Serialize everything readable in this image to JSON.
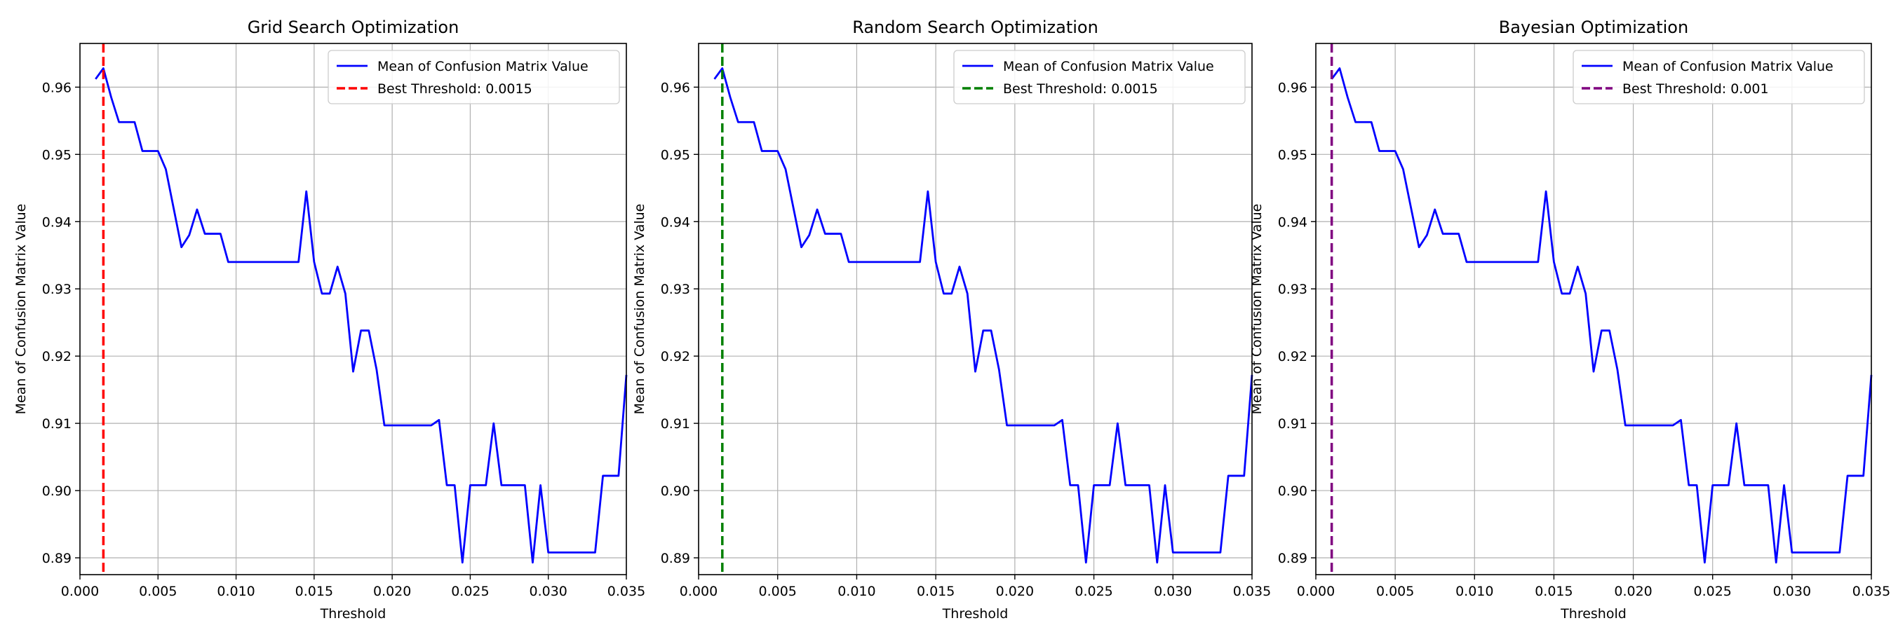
{
  "chart_data": [
    {
      "type": "line",
      "title": "Grid Search Optimization",
      "xlabel": "Threshold",
      "ylabel": "Mean of Confusion Matrix Value",
      "xlim": [
        0.0,
        0.035
      ],
      "ylim": [
        0.8875,
        0.9665
      ],
      "xticks": [
        "0.000",
        "0.005",
        "0.010",
        "0.015",
        "0.020",
        "0.025",
        "0.030",
        "0.035"
      ],
      "yticks": [
        "0.89",
        "0.90",
        "0.91",
        "0.92",
        "0.93",
        "0.94",
        "0.95",
        "0.96"
      ],
      "grid": true,
      "legend_position": "top-right",
      "series": [
        {
          "name": "Mean of Confusion Matrix Value",
          "color": "#0000ff",
          "x": [
            0.001,
            0.0015,
            0.002,
            0.0025,
            0.003,
            0.0035,
            0.004,
            0.0045,
            0.005,
            0.0055,
            0.006,
            0.0065,
            0.007,
            0.0075,
            0.008,
            0.0085,
            0.009,
            0.0095,
            0.01,
            0.0105,
            0.011,
            0.0115,
            0.012,
            0.0125,
            0.013,
            0.0135,
            0.014,
            0.0145,
            0.015,
            0.0155,
            0.016,
            0.0165,
            0.017,
            0.0175,
            0.018,
            0.0185,
            0.019,
            0.0195,
            0.02,
            0.0205,
            0.021,
            0.0215,
            0.022,
            0.0225,
            0.023,
            0.0235,
            0.024,
            0.0245,
            0.025,
            0.0255,
            0.026,
            0.0265,
            0.027,
            0.0275,
            0.028,
            0.0285,
            0.029,
            0.0295,
            0.03,
            0.0305,
            0.031,
            0.0315,
            0.032,
            0.0325,
            0.033,
            0.0335,
            0.034,
            0.0345,
            0.035
          ],
          "values": [
            0.9612,
            0.9628,
            0.9585,
            0.9548,
            0.9548,
            0.9548,
            0.9505,
            0.9505,
            0.9505,
            0.9478,
            0.942,
            0.9362,
            0.938,
            0.9418,
            0.9382,
            0.9382,
            0.9382,
            0.934,
            0.934,
            0.934,
            0.934,
            0.934,
            0.934,
            0.934,
            0.934,
            0.934,
            0.934,
            0.9445,
            0.934,
            0.9293,
            0.9293,
            0.9333,
            0.9293,
            0.9177,
            0.9238,
            0.9238,
            0.918,
            0.9097,
            0.9097,
            0.9097,
            0.9097,
            0.9097,
            0.9097,
            0.9097,
            0.9105,
            0.9008,
            0.9008,
            0.8893,
            0.9008,
            0.9008,
            0.9008,
            0.91,
            0.9008,
            0.9008,
            0.9008,
            0.9008,
            0.8893,
            0.9008,
            0.8908,
            0.8908,
            0.8908,
            0.8908,
            0.8908,
            0.8908,
            0.8908,
            0.9022,
            0.9022,
            0.9022,
            0.9172
          ]
        },
        {
          "name": "Best Threshold: 0.0015",
          "color": "#ff0000",
          "style": "dashed",
          "vline": 0.0015
        }
      ]
    },
    {
      "type": "line",
      "title": "Random Search Optimization",
      "xlabel": "Threshold",
      "ylabel": "Mean of Confusion Matrix Value",
      "xlim": [
        0.0,
        0.035
      ],
      "ylim": [
        0.8875,
        0.9665
      ],
      "xticks": [
        "0.000",
        "0.005",
        "0.010",
        "0.015",
        "0.020",
        "0.025",
        "0.030",
        "0.035"
      ],
      "yticks": [
        "0.89",
        "0.90",
        "0.91",
        "0.92",
        "0.93",
        "0.94",
        "0.95",
        "0.96"
      ],
      "grid": true,
      "legend_position": "top-right",
      "series": [
        {
          "name": "Mean of Confusion Matrix Value",
          "color": "#0000ff",
          "x": [
            0.001,
            0.0015,
            0.002,
            0.0025,
            0.003,
            0.0035,
            0.004,
            0.0045,
            0.005,
            0.0055,
            0.006,
            0.0065,
            0.007,
            0.0075,
            0.008,
            0.0085,
            0.009,
            0.0095,
            0.01,
            0.0105,
            0.011,
            0.0115,
            0.012,
            0.0125,
            0.013,
            0.0135,
            0.014,
            0.0145,
            0.015,
            0.0155,
            0.016,
            0.0165,
            0.017,
            0.0175,
            0.018,
            0.0185,
            0.019,
            0.0195,
            0.02,
            0.0205,
            0.021,
            0.0215,
            0.022,
            0.0225,
            0.023,
            0.0235,
            0.024,
            0.0245,
            0.025,
            0.0255,
            0.026,
            0.0265,
            0.027,
            0.0275,
            0.028,
            0.0285,
            0.029,
            0.0295,
            0.03,
            0.0305,
            0.031,
            0.0315,
            0.032,
            0.0325,
            0.033,
            0.0335,
            0.034,
            0.0345,
            0.035
          ],
          "values": [
            0.9612,
            0.9628,
            0.9585,
            0.9548,
            0.9548,
            0.9548,
            0.9505,
            0.9505,
            0.9505,
            0.9478,
            0.942,
            0.9362,
            0.938,
            0.9418,
            0.9382,
            0.9382,
            0.9382,
            0.934,
            0.934,
            0.934,
            0.934,
            0.934,
            0.934,
            0.934,
            0.934,
            0.934,
            0.934,
            0.9445,
            0.934,
            0.9293,
            0.9293,
            0.9333,
            0.9293,
            0.9177,
            0.9238,
            0.9238,
            0.918,
            0.9097,
            0.9097,
            0.9097,
            0.9097,
            0.9097,
            0.9097,
            0.9097,
            0.9105,
            0.9008,
            0.9008,
            0.8893,
            0.9008,
            0.9008,
            0.9008,
            0.91,
            0.9008,
            0.9008,
            0.9008,
            0.9008,
            0.8893,
            0.9008,
            0.8908,
            0.8908,
            0.8908,
            0.8908,
            0.8908,
            0.8908,
            0.8908,
            0.9022,
            0.9022,
            0.9022,
            0.9172
          ]
        },
        {
          "name": "Best Threshold: 0.0015",
          "color": "#008000",
          "style": "dashed",
          "vline": 0.0015
        }
      ]
    },
    {
      "type": "line",
      "title": "Bayesian Optimization",
      "xlabel": "Threshold",
      "ylabel": "Mean of Confusion Matrix Value",
      "xlim": [
        0.0,
        0.035
      ],
      "ylim": [
        0.8875,
        0.9665
      ],
      "xticks": [
        "0.000",
        "0.005",
        "0.010",
        "0.015",
        "0.020",
        "0.025",
        "0.030",
        "0.035"
      ],
      "yticks": [
        "0.89",
        "0.90",
        "0.91",
        "0.92",
        "0.93",
        "0.94",
        "0.95",
        "0.96"
      ],
      "grid": true,
      "legend_position": "top-right",
      "series": [
        {
          "name": "Mean of Confusion Matrix Value",
          "color": "#0000ff",
          "x": [
            0.001,
            0.0015,
            0.002,
            0.0025,
            0.003,
            0.0035,
            0.004,
            0.0045,
            0.005,
            0.0055,
            0.006,
            0.0065,
            0.007,
            0.0075,
            0.008,
            0.0085,
            0.009,
            0.0095,
            0.01,
            0.0105,
            0.011,
            0.0115,
            0.012,
            0.0125,
            0.013,
            0.0135,
            0.014,
            0.0145,
            0.015,
            0.0155,
            0.016,
            0.0165,
            0.017,
            0.0175,
            0.018,
            0.0185,
            0.019,
            0.0195,
            0.02,
            0.0205,
            0.021,
            0.0215,
            0.022,
            0.0225,
            0.023,
            0.0235,
            0.024,
            0.0245,
            0.025,
            0.0255,
            0.026,
            0.0265,
            0.027,
            0.0275,
            0.028,
            0.0285,
            0.029,
            0.0295,
            0.03,
            0.0305,
            0.031,
            0.0315,
            0.032,
            0.0325,
            0.033,
            0.0335,
            0.034,
            0.0345,
            0.035
          ],
          "values": [
            0.9612,
            0.9628,
            0.9585,
            0.9548,
            0.9548,
            0.9548,
            0.9505,
            0.9505,
            0.9505,
            0.9478,
            0.942,
            0.9362,
            0.938,
            0.9418,
            0.9382,
            0.9382,
            0.9382,
            0.934,
            0.934,
            0.934,
            0.934,
            0.934,
            0.934,
            0.934,
            0.934,
            0.934,
            0.934,
            0.9445,
            0.934,
            0.9293,
            0.9293,
            0.9333,
            0.9293,
            0.9177,
            0.9238,
            0.9238,
            0.918,
            0.9097,
            0.9097,
            0.9097,
            0.9097,
            0.9097,
            0.9097,
            0.9097,
            0.9105,
            0.9008,
            0.9008,
            0.8893,
            0.9008,
            0.9008,
            0.9008,
            0.91,
            0.9008,
            0.9008,
            0.9008,
            0.9008,
            0.8893,
            0.9008,
            0.8908,
            0.8908,
            0.8908,
            0.8908,
            0.8908,
            0.8908,
            0.8908,
            0.9022,
            0.9022,
            0.9022,
            0.9172
          ]
        },
        {
          "name": "Best Threshold: 0.001",
          "color": "#800080",
          "style": "dashed",
          "vline": 0.001
        }
      ]
    }
  ]
}
